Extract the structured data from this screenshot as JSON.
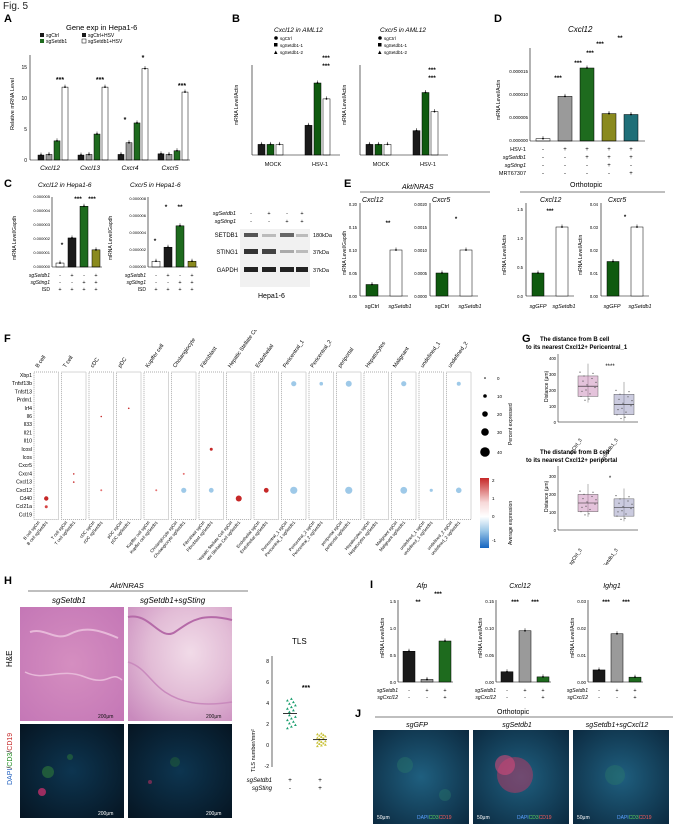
{
  "figure": {
    "title": "Fig. 5"
  },
  "colors": {
    "black": "#1a1a1a",
    "gray": "#9a9a9a",
    "green": "#1e6b1e",
    "darkgreen": "#0f5a0f",
    "olive": "#8a8a1e",
    "teal": "#1f6f78",
    "white": "#ffffff"
  },
  "panelA": {
    "letter": "A",
    "title": "Gene exp in Hepa1-6",
    "ylabel": "Relative mRNA Level",
    "legend": [
      "sgCtrl",
      "sgSetdb1",
      "sgCtrl+HSV",
      "sgSetdb1+HSV"
    ],
    "yticks": [
      "0",
      "5",
      "10",
      "15"
    ],
    "sig": [
      "***",
      "***",
      "*",
      "*",
      "***"
    ]
  },
  "panelB": {
    "letter": "B",
    "legend": [
      "sgCtrl",
      "sgSetdb1-1",
      "sgSetdb1-2"
    ],
    "charts": [
      {
        "title": "Cxcl12 in AML12",
        "ylabel": "mRNA Level/Actin",
        "yticks": [
          "0.000000",
          "0.000002",
          "0.000004",
          "0.000006",
          "0.000008"
        ],
        "xlabels": [
          "MOCK",
          "HSV-1"
        ],
        "sig": [
          "***",
          "***"
        ]
      },
      {
        "title": "Cxcr5 in AML12",
        "ylabel": "mRNA Level/Actin",
        "yticks": [
          "0.000000",
          "0.000002",
          "0.000004",
          "0.000006",
          "0.000008"
        ],
        "xlabels": [
          "MOCK",
          "HSV-1"
        ],
        "sig": [
          "***",
          "***"
        ]
      }
    ]
  },
  "panelC": {
    "letter": "C",
    "charts": [
      {
        "title": "Cxcl12 in Hepa1-6",
        "ylabel": "mRNA Level/Gapdh",
        "yticks": [
          "0.000000",
          "0.000001",
          "0.000002",
          "0.000003",
          "0.000004",
          "0.000005"
        ],
        "sig": [
          "*",
          "***",
          "***"
        ]
      },
      {
        "title": "Cxcr5 in Hepa1-6",
        "ylabel": "mRNA Level/Gapdh",
        "yticks": [
          "0.000000",
          "0.000002",
          "0.000004",
          "0.000006",
          "0.000008"
        ],
        "sig": [
          "*",
          "*",
          "**"
        ]
      }
    ],
    "rowlabels": [
      "sgSetdb1",
      "sgSting1",
      "ISD"
    ],
    "rows_left": [
      [
        "-",
        "+",
        "-",
        "+"
      ],
      [
        "-",
        "-",
        "+",
        "+"
      ],
      [
        "+",
        "+",
        "+",
        "+"
      ]
    ],
    "rows_mid": [
      [
        "-",
        "+",
        "-",
        "+"
      ],
      [
        "-",
        "-",
        "+",
        "+"
      ],
      [
        "+",
        "+",
        "+",
        "+"
      ]
    ],
    "blot": {
      "rowlabels": [
        "sgSetdb1",
        "sgSting1"
      ],
      "rows": [
        [
          "-",
          "+",
          "-",
          "+"
        ],
        [
          "-",
          "-",
          "+",
          "+"
        ]
      ],
      "bands": [
        "SETDB1",
        "STING1",
        "GAPDH"
      ],
      "sizes": [
        "180kDa",
        "37kDa",
        "37kDa"
      ],
      "caption": "Hepa1-6"
    }
  },
  "panelD": {
    "letter": "D",
    "title": "Cxcl12",
    "ylabel": "mRNA Level/Actin",
    "yticks": [
      "0.000000",
      "0.000005",
      "0.000010",
      "0.000015"
    ],
    "rowlabels": [
      "HSV-1",
      "sgSetdb1",
      "sgSting1",
      "MRT67307"
    ],
    "rows": [
      [
        "-",
        "+",
        "+",
        "+",
        "+"
      ],
      [
        "-",
        "-",
        "+",
        "+",
        "+"
      ],
      [
        "-",
        "-",
        "-",
        "+",
        "-"
      ],
      [
        "-",
        "-",
        "-",
        "-",
        "+"
      ]
    ],
    "sig": [
      "***",
      "***",
      "***",
      "***",
      "**"
    ]
  },
  "panelE": {
    "letter": "E",
    "group1": "Akt/NRAS",
    "group2": "Orthotopic",
    "charts": [
      {
        "title": "Cxcl12",
        "ylabel": "mRNA Level/Gapdh",
        "yticks": [
          "0.00",
          "0.05",
          "0.10",
          "0.15",
          "0.20"
        ],
        "xlabels": [
          "sgCtrl",
          "sgSetdb1"
        ],
        "sig": "**"
      },
      {
        "title": "Cxcr5",
        "ylabel": "",
        "yticks": [
          "0.0000",
          "0.0005",
          "0.0010",
          "0.0015",
          "0.0020"
        ],
        "xlabels": [
          "sgCtrl",
          "sgSetdb1"
        ],
        "sig": "*"
      },
      {
        "title": "Cxcl12",
        "ylabel": "mRNA Level/Actin",
        "yticks": [
          "0.0",
          "0.5",
          "1.0",
          "1.5"
        ],
        "xlabels": [
          "sgGFP",
          "sgSetdb1"
        ],
        "sig": "***"
      },
      {
        "title": "Cxcr5",
        "ylabel": "mRNA Level/Actin",
        "yticks": [
          "0.00",
          "0.01",
          "0.02",
          "0.03",
          "0.04"
        ],
        "xlabels": [
          "sgGFP",
          "sgSetdb1"
        ],
        "sig": "*"
      }
    ]
  },
  "panelF": {
    "letter": "F",
    "celltypes": [
      "B cell",
      "T cell",
      "cDC",
      "pDC",
      "Kupffer cell",
      "Cholangiocyte",
      "Fibroblast",
      "Hepatic Stellate Cell",
      "Endothelial",
      "Pericentral_1",
      "Pericentral_2",
      "periportal",
      "Hepatocytes",
      "Malignant",
      "undefined_1",
      "undefined_2"
    ],
    "genes": [
      "Xbp1",
      "Tnfsf13b",
      "Tnfsf13",
      "Prdm1",
      "Irf4",
      "Il6",
      "Il33",
      "Il21",
      "Il10",
      "Icosl",
      "Icos",
      "Cxcr5",
      "Cxcr4",
      "Cxcl13",
      "Cxcl12",
      "Cd40",
      "Ccl21a",
      "Ccl19"
    ],
    "xlabels": [
      "B cell sgCtrl",
      "B cell sgSetdb1",
      "T cell sgCtrl",
      "T cell sgSetdb1",
      "cDC sgCtrl",
      "cDC sgSetdb1",
      "pDC sgCtrl",
      "pDC sgSetdb1",
      "Kupffer cell sgCtrl",
      "Kupffer cell sgSetdb1",
      "Cholangiocyte sgCtrl",
      "Cholangiocyte sgSetdb1",
      "Fibroblast sgCtrl",
      "Fibroblast sgSetdb1",
      "Hepatic Stellate Cell sgCtrl",
      "Hepatic Stellate Cell sgSetdb1",
      "Endothelial sgCtrl",
      "Endothelial sgSetdb1",
      "Pericentral_1 sgCtrl",
      "Pericentral_1 sgSetdb1",
      "Pericentral_2 sgCtrl",
      "Pericentral_2 sgSetdb1",
      "periportal sgCtrl",
      "periportal sgSetdb1",
      "Hepatocytes sgCtrl",
      "Hepatocytes sgSetdb1",
      "Malignant sgCtrl",
      "Malignant sgSetdb1",
      "undefined_1 sgCtrl",
      "undefined_1 sgSetdb1",
      "undefined_2 sgCtrl",
      "undefined_2 sgSetdb1"
    ],
    "size_legend_title": "Percent expressed",
    "size_legend": [
      "0",
      "10",
      "20",
      "30",
      "40"
    ],
    "color_legend_title": "Average expression",
    "color_legend": [
      "2",
      "1",
      "0",
      "-1"
    ]
  },
  "panelG": {
    "letter": "G",
    "charts": [
      {
        "title": "The distance from B cell to its nearest Cxcl12+ Pericentral_1",
        "ylabel": "Distance (μm)",
        "yticks": [
          "0",
          "100",
          "200",
          "300",
          "400"
        ],
        "xlabels": [
          "sgCtrl_3",
          "sgSetdb1_3"
        ],
        "sig": "****"
      },
      {
        "title": "The distance from B cell to its nearest Cxcl12+ periportal",
        "ylabel": "Distance (μm)",
        "yticks": [
          "0",
          "100",
          "200",
          "300"
        ],
        "xlabels": [
          "sgCtrl_3",
          "sgSetdb1_3"
        ],
        "sig": "*"
      }
    ]
  },
  "panelH": {
    "letter": "H",
    "group": "Akt/NRAS",
    "col1": "sgSetdb1",
    "col2": "sgSetdb1+sgSting",
    "row1": "H&E",
    "row2": [
      "DAPI",
      "CD3",
      "CD19"
    ],
    "scale": [
      "200μm",
      "200μm",
      "200μm",
      "200μm"
    ],
    "tls_title": "TLS",
    "tls_ylabel": "TLS number/mm²",
    "tls_yticks": [
      "-2",
      "0",
      "2",
      "4",
      "6",
      "8"
    ],
    "tls_sig": "***",
    "rowlabels": [
      "sgSetdb1",
      "sgSting"
    ],
    "rows": [
      [
        "+",
        "+"
      ],
      [
        "-",
        "+"
      ]
    ]
  },
  "panelI": {
    "letter": "I",
    "charts": [
      {
        "title": "Afp",
        "ylabel": "mRNA Level/Actin",
        "yticks": [
          "0.0",
          "0.5",
          "1.0",
          "1.5"
        ],
        "sig": [
          "**",
          "***"
        ]
      },
      {
        "title": "Cxcl12",
        "ylabel": "mRNA Level/Actin",
        "yticks": [
          "0.00",
          "0.05",
          "0.10",
          "0.15"
        ],
        "sig": [
          "***",
          "***"
        ]
      },
      {
        "title": "Ighg1",
        "ylabel": "mRNA Level/Actin",
        "yticks": [
          "0.00",
          "0.01",
          "0.02",
          "0.03"
        ],
        "sig": [
          "***",
          "***"
        ]
      }
    ],
    "rowlabels": [
      "sgSetdb1",
      "sgCxcl12"
    ],
    "rows": [
      [
        "-",
        "+",
        "+"
      ],
      [
        "-",
        "-",
        "+"
      ]
    ]
  },
  "panelJ": {
    "letter": "J",
    "group": "Orthotopic",
    "cols": [
      "sgGFP",
      "sgSetdb1",
      "sgSetdb1+sgCxcl12"
    ],
    "stain": [
      "DAPI",
      "CD3",
      "CD19"
    ],
    "scale": [
      "50μm",
      "50μm",
      "50μm"
    ]
  },
  "chart_data": [
    {
      "panel": "A",
      "type": "bar",
      "categories": [
        "Cxcl12",
        "Cxcl13",
        "Cxcr4",
        "Cxcr5"
      ],
      "series": [
        {
          "name": "sgCtrl",
          "values": [
            0.8,
            0.8,
            0.9,
            1.0
          ]
        },
        {
          "name": "sgSetdb1",
          "values": [
            0.9,
            0.9,
            2.8,
            0.9
          ]
        },
        {
          "name": "sgCtrl+HSV",
          "values": [
            3.1,
            4.2,
            6.0,
            1.5
          ]
        },
        {
          "name": "sgSetdb1+HSV",
          "values": [
            11.8,
            11.8,
            14.8,
            11.0
          ]
        }
      ],
      "ylim": [
        0,
        17
      ]
    },
    {
      "panel": "B1",
      "type": "bar",
      "categories": [
        "MOCK",
        "HSV-1"
      ],
      "series": [
        {
          "name": "sgCtrl",
          "values": [
            1e-06,
            2.8e-06
          ]
        },
        {
          "name": "sgSetdb1-1",
          "values": [
            1e-06,
            6.8e-06
          ]
        },
        {
          "name": "sgSetdb1-2",
          "values": [
            1e-06,
            5.3e-06
          ]
        }
      ],
      "ylim": [
        0,
        8.5e-06
      ]
    },
    {
      "panel": "B2",
      "type": "bar",
      "categories": [
        "MOCK",
        "HSV-1"
      ],
      "series": [
        {
          "name": "sgCtrl",
          "values": [
            1e-06,
            2.3e-06
          ]
        },
        {
          "name": "sgSetdb1-1",
          "values": [
            1e-06,
            5.9e-06
          ]
        },
        {
          "name": "sgSetdb1-2",
          "values": [
            1e-06,
            4.1e-06
          ]
        }
      ],
      "ylim": [
        0,
        8.5e-06
      ]
    },
    {
      "panel": "C1",
      "type": "bar",
      "values": [
        3e-07,
        2.2e-06,
        4.6e-06,
        1.3e-06
      ],
      "ylim": [
        0,
        5.3e-06
      ]
    },
    {
      "panel": "C2",
      "type": "bar",
      "values": [
        7e-07,
        2.4e-06,
        5e-06,
        7e-07
      ],
      "ylim": [
        0,
        8.5e-06
      ]
    },
    {
      "panel": "D",
      "type": "bar",
      "values": [
        5e-07,
        9.6e-06,
        1.57e-05,
        5.9e-06,
        5.7e-06
      ],
      "ylim": [
        0,
        2e-05
      ]
    },
    {
      "panel": "E1",
      "type": "bar",
      "categories": [
        "sgCtrl",
        "sgSetdb1"
      ],
      "values": [
        0.025,
        0.1
      ],
      "ylim": [
        0,
        0.2
      ]
    },
    {
      "panel": "E2",
      "type": "bar",
      "categories": [
        "sgCtrl",
        "sgSetdb1"
      ],
      "values": [
        0.0005,
        0.001
      ],
      "ylim": [
        0,
        0.002
      ]
    },
    {
      "panel": "E3",
      "type": "bar",
      "categories": [
        "sgGFP",
        "sgSetdb1"
      ],
      "values": [
        0.4,
        1.2
      ],
      "ylim": [
        0,
        1.6
      ]
    },
    {
      "panel": "E4",
      "type": "bar",
      "categories": [
        "sgGFP",
        "sgSetdb1"
      ],
      "values": [
        0.015,
        0.03
      ],
      "ylim": [
        0,
        0.04
      ]
    },
    {
      "panel": "G1",
      "type": "box",
      "categories": [
        "sgCtrl_3",
        "sgSetdb1_3"
      ],
      "medians": [
        235,
        115
      ],
      "ylim": [
        0,
        420
      ]
    },
    {
      "panel": "G2",
      "type": "box",
      "categories": [
        "sgCtrl_3",
        "sgSetdb1_3"
      ],
      "medians": [
        180,
        150
      ],
      "ylim": [
        0,
        360
      ]
    },
    {
      "panel": "H",
      "type": "scatter",
      "categories": [
        "sgSetdb1",
        "sgSetdb1+sgSting"
      ],
      "means": [
        3.2,
        0.7
      ],
      "ylim": [
        -2,
        8
      ]
    },
    {
      "panel": "I1",
      "type": "bar",
      "values": [
        0.6,
        0.05,
        0.8
      ],
      "ylim": [
        0,
        1.6
      ]
    },
    {
      "panel": "I2",
      "type": "bar",
      "values": [
        0.02,
        0.1,
        0.01
      ],
      "ylim": [
        0,
        0.16
      ]
    },
    {
      "panel": "I3",
      "type": "bar",
      "values": [
        0.005,
        0.02,
        0.002
      ],
      "ylim": [
        0,
        0.034
      ]
    }
  ]
}
